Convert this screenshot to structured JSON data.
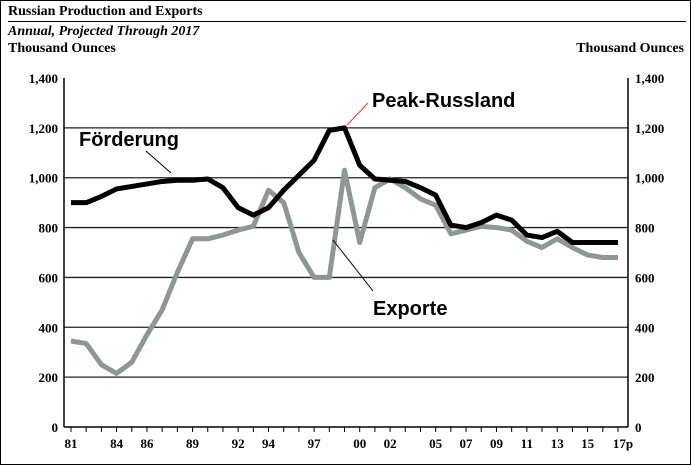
{
  "header": {
    "title": "Russian Production and Exports",
    "subtitle": "Annual, Projected Through 2017",
    "left_unit": "Thousand Ounces",
    "right_unit": "Thousand Ounces"
  },
  "chart_data": {
    "type": "line",
    "title": "Russian Production and Exports",
    "subtitle": "Annual, Projected Through 2017",
    "ylabel": "Thousand Ounces",
    "ylabel_right": "Thousand Ounces",
    "ylim": [
      0,
      1400
    ],
    "yticks": [
      0,
      200,
      400,
      600,
      800,
      1000,
      1200,
      1400
    ],
    "ytick_labels": [
      "0",
      "200",
      "400",
      "600",
      "800",
      "1,000",
      "1,200",
      "1,400"
    ],
    "grid": true,
    "x": [
      1981,
      1982,
      1983,
      1984,
      1985,
      1986,
      1987,
      1988,
      1989,
      1990,
      1991,
      1992,
      1993,
      1994,
      1995,
      1996,
      1997,
      1998,
      1999,
      2000,
      2001,
      2002,
      2003,
      2004,
      2005,
      2006,
      2007,
      2008,
      2009,
      2010,
      2011,
      2012,
      2013,
      2014,
      2015,
      2016,
      2017
    ],
    "xticks": [
      1981,
      1984,
      1986,
      1989,
      1992,
      1994,
      1997,
      2000,
      2002,
      2005,
      2007,
      2009,
      2011,
      2013,
      2015,
      2017
    ],
    "xtick_labels": [
      "81",
      "84",
      "86",
      "89",
      "92",
      "94",
      "97",
      "00",
      "02",
      "05",
      "07",
      "09",
      "11",
      "13",
      "15",
      "17p"
    ],
    "series": [
      {
        "name": "Förderung",
        "color": "#000000",
        "values": [
          900,
          900,
          925,
          955,
          965,
          975,
          985,
          990,
          990,
          995,
          960,
          880,
          850,
          880,
          950,
          1010,
          1070,
          1190,
          1200,
          1050,
          995,
          990,
          985,
          960,
          930,
          810,
          800,
          820,
          850,
          830,
          770,
          760,
          785,
          740,
          740,
          740,
          740
        ]
      },
      {
        "name": "Exporte",
        "color": "#8f9795",
        "values": [
          345,
          335,
          250,
          215,
          260,
          370,
          470,
          620,
          755,
          755,
          770,
          790,
          805,
          950,
          900,
          700,
          600,
          600,
          1030,
          740,
          960,
          995,
          960,
          915,
          890,
          775,
          790,
          805,
          800,
          790,
          745,
          720,
          755,
          720,
          690,
          680,
          680
        ]
      }
    ],
    "annotations": [
      "Förderung",
      "Peak-Russland",
      "Exporte"
    ]
  }
}
